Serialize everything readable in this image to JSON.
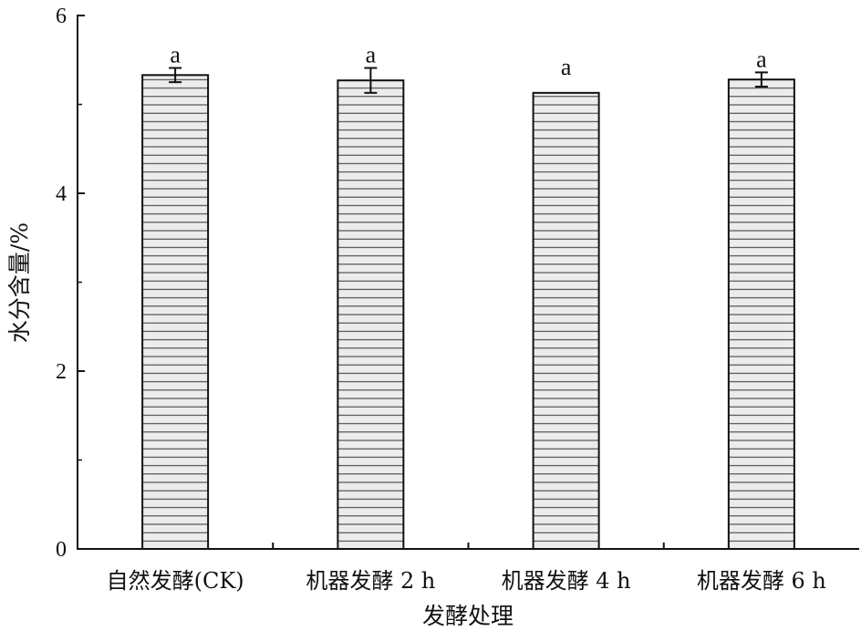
{
  "chart_data": {
    "type": "bar",
    "categories": [
      "自然发酵(CK)",
      "机器发酵 2 h",
      "机器发酵 4 h",
      "机器发酵 6 h"
    ],
    "values": [
      5.33,
      5.27,
      5.13,
      5.28
    ],
    "errors": [
      0.08,
      0.14,
      0.0,
      0.08
    ],
    "significance": [
      "a",
      "a",
      "a",
      "a"
    ],
    "title": "",
    "xlabel": "发酵处理",
    "ylabel": "水分含量/%",
    "ylim": [
      0,
      6
    ],
    "major_ticks": [
      0,
      2,
      4,
      6
    ],
    "minor_ticks": [
      1,
      3,
      5
    ],
    "tick_labels": [
      "0",
      "2",
      "4",
      "6"
    ],
    "bar_fill": "#e9e9e9",
    "bar_pattern": "horizontal-lines",
    "grid": false,
    "legend": "none"
  }
}
